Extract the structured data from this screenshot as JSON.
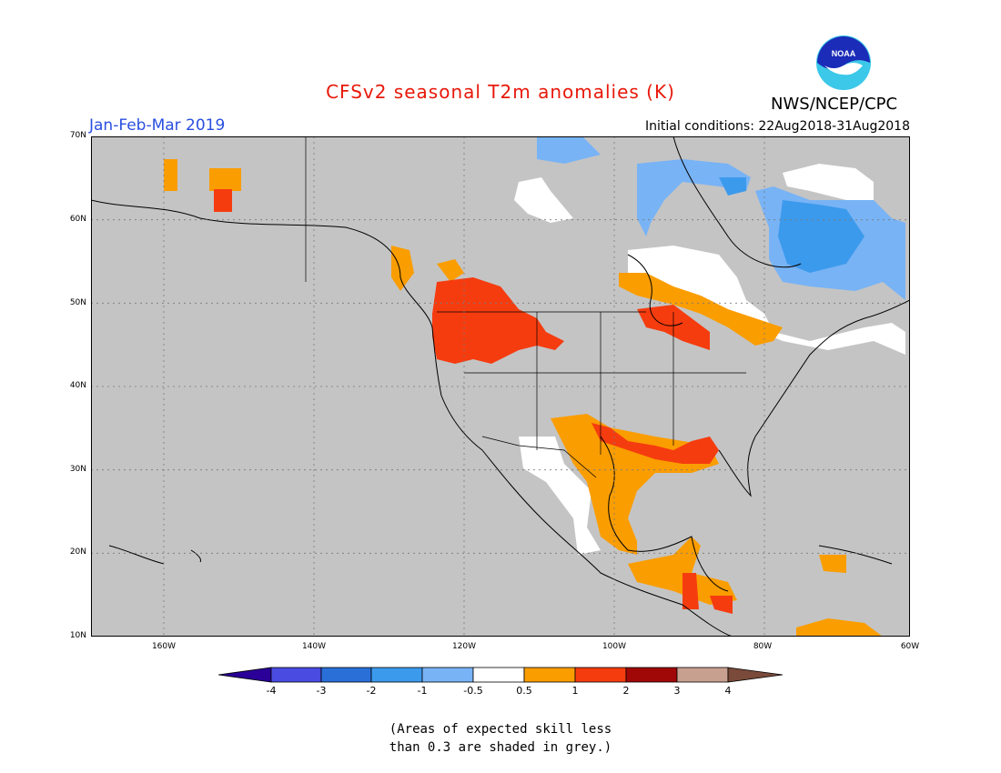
{
  "header": {
    "title": "CFSv2 seasonal T2m anomalies (K)",
    "season": "Jan-Feb-Mar 2019",
    "initial_conditions": "Initial conditions: 22Aug2018-31Aug2018",
    "agency": "NWS/NCEP/CPC",
    "logo_text": "NOAA"
  },
  "map": {
    "lat_labels": [
      "70N",
      "60N",
      "50N",
      "40N",
      "30N",
      "20N",
      "10N"
    ],
    "lon_labels": [
      "160W",
      "140W",
      "120W",
      "100W",
      "80W",
      "60W"
    ],
    "colors": {
      "ocean_grey": "#c4c4c4",
      "white": "#ffffff",
      "orange": "#fa9d00",
      "red_orange": "#f53c0f",
      "blue": "#78b3f5",
      "light_blue": "#3c9aec"
    }
  },
  "colorbar": {
    "labels": [
      "-4",
      "-3",
      "-2",
      "-1",
      "-0.5",
      "0.5",
      "1",
      "2",
      "3",
      "4"
    ],
    "colors": [
      "#2a0098",
      "#4a4be0",
      "#2a6fd8",
      "#3c9aec",
      "#78b3f5",
      "#ffffff",
      "#fa9d00",
      "#f53c0f",
      "#a00808",
      "#c8a090",
      "#7a4a3a"
    ]
  },
  "footnote": {
    "line1": "(Areas of expected skill less",
    "line2": "than 0.3 are shaded in grey.)"
  }
}
